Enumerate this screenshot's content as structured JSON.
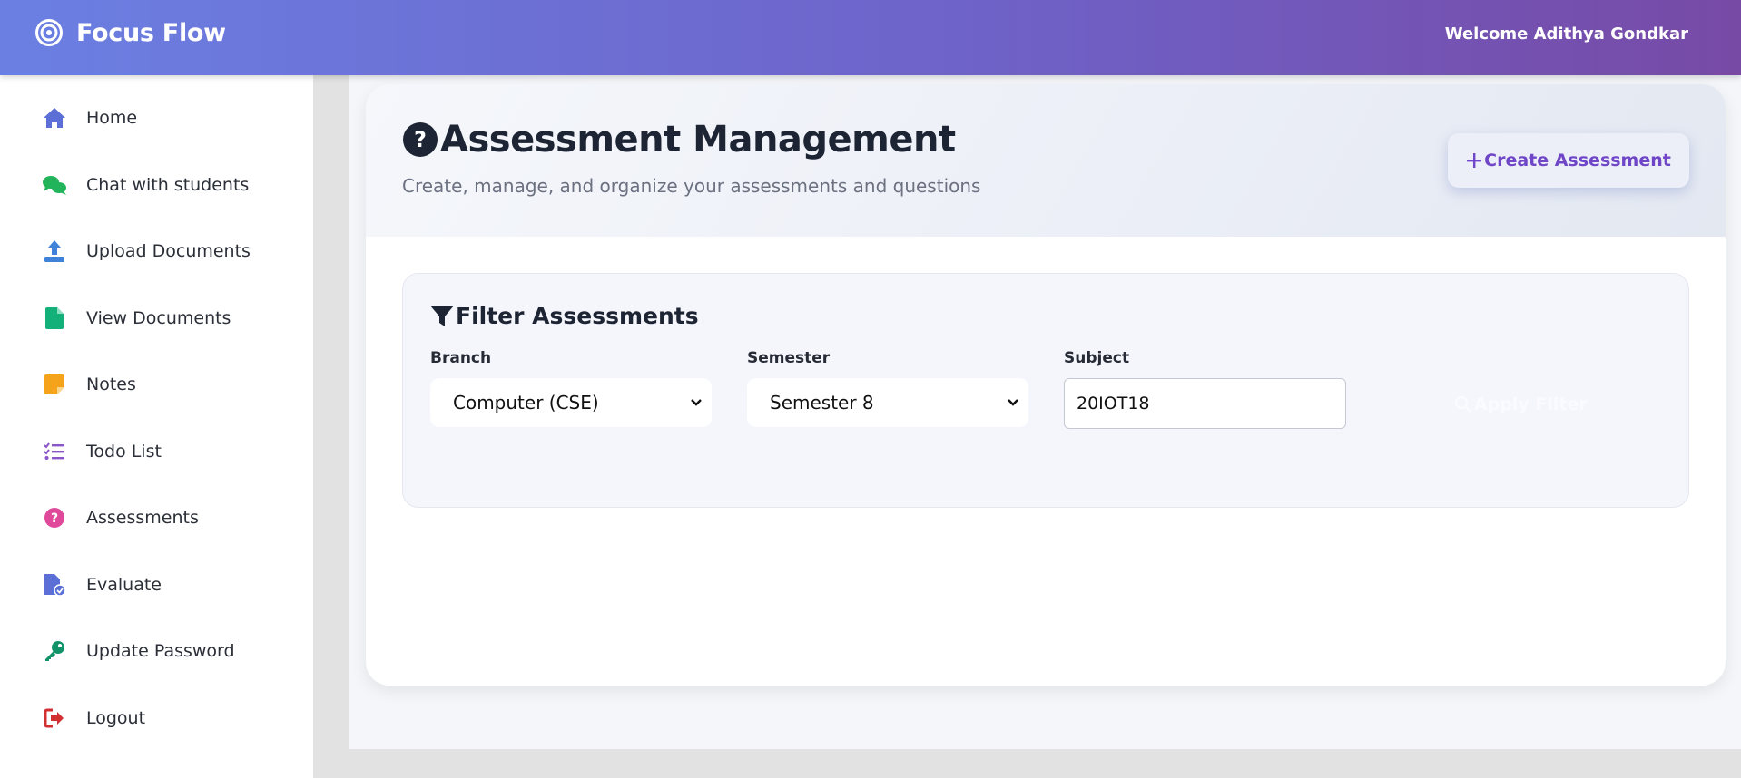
{
  "app": {
    "brand": "Focus Flow",
    "welcome": "Welcome Adithya Gondkar"
  },
  "sidebar": {
    "items": [
      {
        "label": "Home",
        "icon": "home-icon",
        "color": "#5b6fd6"
      },
      {
        "label": "Chat with students",
        "icon": "chat-icon",
        "color": "#22b45a"
      },
      {
        "label": "Upload Documents",
        "icon": "upload-icon",
        "color": "#3f82d9"
      },
      {
        "label": "View Documents",
        "icon": "document-icon",
        "color": "#14b07a"
      },
      {
        "label": "Notes",
        "icon": "note-icon",
        "color": "#f5a31a"
      },
      {
        "label": "Todo List",
        "icon": "checklist-icon",
        "color": "#8a55c8"
      },
      {
        "label": "Assessments",
        "icon": "question-circle-icon",
        "color": "#e0489a"
      },
      {
        "label": "Evaluate",
        "icon": "file-check-icon",
        "color": "#5b6fd6"
      },
      {
        "label": "Update Password",
        "icon": "key-icon",
        "color": "#11936a"
      },
      {
        "label": "Logout",
        "icon": "logout-icon",
        "color": "#d23030"
      }
    ]
  },
  "header": {
    "title": "Assessment Management",
    "subtitle": "Create, manage, and organize your assessments and questions",
    "create_button": "Create Assessment",
    "accent": "#7046c8"
  },
  "filter": {
    "title": "Filter Assessments",
    "branch": {
      "label": "Branch",
      "value": "Computer (CSE)"
    },
    "semester": {
      "label": "Semester",
      "value": "Semester 8"
    },
    "subject": {
      "label": "Subject",
      "value": "20IOT18"
    },
    "apply_button": "Apply Filter"
  }
}
